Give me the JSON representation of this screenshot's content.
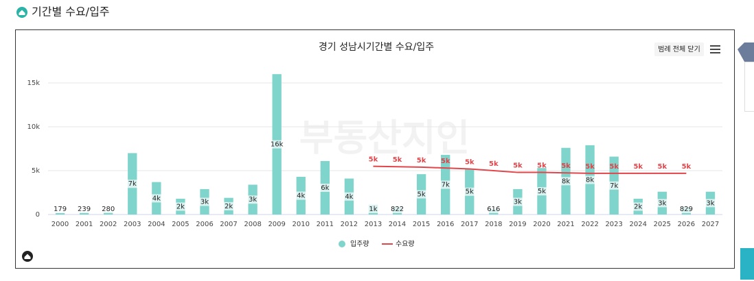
{
  "header": {
    "title": "기간별 수요/입주"
  },
  "legend_button": "범례 전체 닫기",
  "watermark": "부동산지인",
  "chart_data": {
    "type": "bar",
    "title": "경기 성남시기간별 수요/입주",
    "categories": [
      "2000",
      "2001",
      "2002",
      "2003",
      "2004",
      "2005",
      "2006",
      "2007",
      "2008",
      "2009",
      "2010",
      "2011",
      "2012",
      "2013",
      "2014",
      "2015",
      "2016",
      "2017",
      "2018",
      "2019",
      "2020",
      "2021",
      "2022",
      "2023",
      "2024",
      "2025",
      "2026",
      "2027"
    ],
    "series": [
      {
        "name": "입주량",
        "type": "bar",
        "color": "#7fd4cc",
        "values": [
          179,
          239,
          280,
          7000,
          3700,
          1800,
          2900,
          1900,
          3400,
          16000,
          4300,
          6100,
          4100,
          1100,
          822,
          4600,
          6800,
          5200,
          616,
          2900,
          5300,
          7600,
          7900,
          6600,
          1800,
          2600,
          829,
          2600
        ],
        "value_labels": [
          "179",
          "239",
          "280",
          "7k",
          "4k",
          "2k",
          "3k",
          "2k",
          "3k",
          "16k",
          "4k",
          "6k",
          "4k",
          "1k",
          "822",
          "5k",
          "7k",
          "5k",
          "616",
          "3k",
          "5k",
          "8k",
          "8k",
          "7k",
          "2k",
          "3k",
          "829",
          "3k"
        ]
      },
      {
        "name": "수요량",
        "type": "line",
        "color": "#e0454a",
        "values": [
          null,
          null,
          null,
          null,
          null,
          null,
          null,
          null,
          null,
          null,
          null,
          null,
          null,
          5500,
          5450,
          5400,
          5300,
          5200,
          5000,
          4800,
          4800,
          4750,
          4700,
          4700,
          4700,
          4700,
          4700,
          null
        ],
        "value_labels": [
          null,
          null,
          null,
          null,
          null,
          null,
          null,
          null,
          null,
          null,
          null,
          null,
          null,
          "5k",
          "5k",
          "5k",
          "5k",
          "5k",
          "5k",
          "5k",
          "5k",
          "5k",
          "5k",
          "5k",
          "5k",
          "5k",
          "5k",
          null
        ]
      }
    ],
    "ylim": [
      0,
      17000
    ],
    "yticks": [
      0,
      {
        "value": 5000,
        "label": "5k"
      },
      {
        "value": 10000,
        "label": "10k"
      },
      {
        "value": 15000,
        "label": "15k"
      }
    ],
    "grid": true,
    "legend": "bottom"
  }
}
